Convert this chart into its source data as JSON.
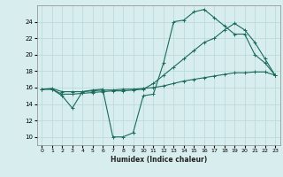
{
  "xlabel": "Humidex (Indice chaleur)",
  "bg_color": "#d8eeee",
  "grid_color": "#b8d8d8",
  "line_color": "#1a6b5a",
  "xlim": [
    -0.5,
    23.5
  ],
  "ylim": [
    9,
    26
  ],
  "xticks": [
    0,
    1,
    2,
    3,
    4,
    5,
    6,
    7,
    8,
    9,
    10,
    11,
    12,
    13,
    14,
    15,
    16,
    17,
    18,
    19,
    20,
    21,
    22,
    23
  ],
  "yticks": [
    10,
    12,
    14,
    16,
    18,
    20,
    22,
    24
  ],
  "line1_x": [
    0,
    1,
    2,
    3,
    4,
    5,
    6,
    7,
    8,
    9,
    10,
    11,
    12,
    13,
    14,
    15,
    16,
    17,
    18,
    19,
    20,
    21,
    22,
    23
  ],
  "line1_y": [
    15.8,
    15.8,
    15.0,
    13.5,
    15.5,
    15.7,
    15.8,
    10.0,
    10.0,
    10.5,
    15.0,
    15.2,
    19.0,
    24.0,
    24.2,
    25.2,
    25.5,
    24.5,
    23.5,
    22.5,
    22.5,
    20.0,
    19.0,
    17.5
  ],
  "line2_x": [
    0,
    1,
    2,
    3,
    4,
    5,
    6,
    7,
    8,
    9,
    10,
    11,
    12,
    13,
    14,
    15,
    16,
    17,
    18,
    19,
    20,
    21,
    22,
    23
  ],
  "line2_y": [
    15.8,
    15.8,
    15.2,
    15.2,
    15.3,
    15.4,
    15.5,
    15.6,
    15.6,
    15.7,
    15.8,
    16.5,
    17.5,
    18.5,
    19.5,
    20.5,
    21.5,
    22.0,
    23.0,
    23.8,
    23.0,
    21.5,
    19.5,
    17.5
  ],
  "line3_x": [
    0,
    1,
    2,
    3,
    4,
    5,
    6,
    7,
    8,
    9,
    10,
    11,
    12,
    13,
    14,
    15,
    16,
    17,
    18,
    19,
    20,
    21,
    22,
    23
  ],
  "line3_y": [
    15.8,
    15.9,
    15.5,
    15.5,
    15.5,
    15.6,
    15.7,
    15.7,
    15.8,
    15.8,
    15.9,
    16.0,
    16.2,
    16.5,
    16.8,
    17.0,
    17.2,
    17.4,
    17.6,
    17.8,
    17.8,
    17.9,
    17.9,
    17.5
  ],
  "tick_fontsize": 4.5,
  "xlabel_fontsize": 5.5
}
